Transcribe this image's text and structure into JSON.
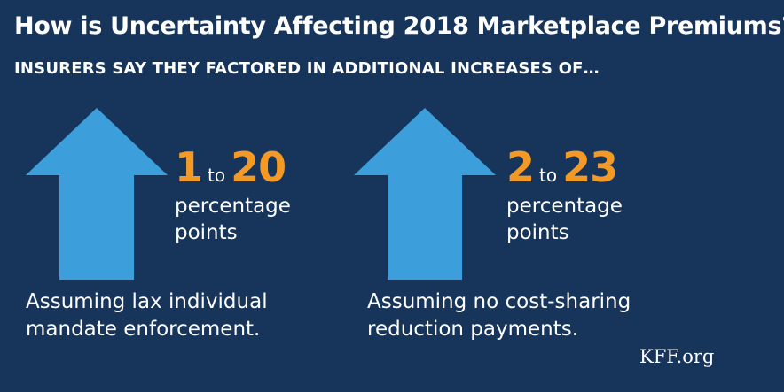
{
  "title": "How is Uncertainty Affecting 2018 Marketplace Premiums?",
  "subtitle": "INSURERS SAY THEY FACTORED IN ADDITIONAL INCREASES OF…",
  "colors": {
    "background": "#17345a",
    "arrow": "#3c9edb",
    "accent": "#f39a26"
  },
  "panels": [
    {
      "icon": "up-arrow-icon",
      "low": "1",
      "connector": "to",
      "high": "20",
      "unit_line1": "percentage",
      "unit_line2": "points",
      "caption_line1": "Assuming lax individual",
      "caption_line2": "mandate enforcement."
    },
    {
      "icon": "up-arrow-icon",
      "low": "2",
      "connector": "to",
      "high": "23",
      "unit_line1": "percentage",
      "unit_line2": "points",
      "caption_line1": "Assuming no cost-sharing",
      "caption_line2": "reduction payments."
    }
  ],
  "source": "KFF.org"
}
